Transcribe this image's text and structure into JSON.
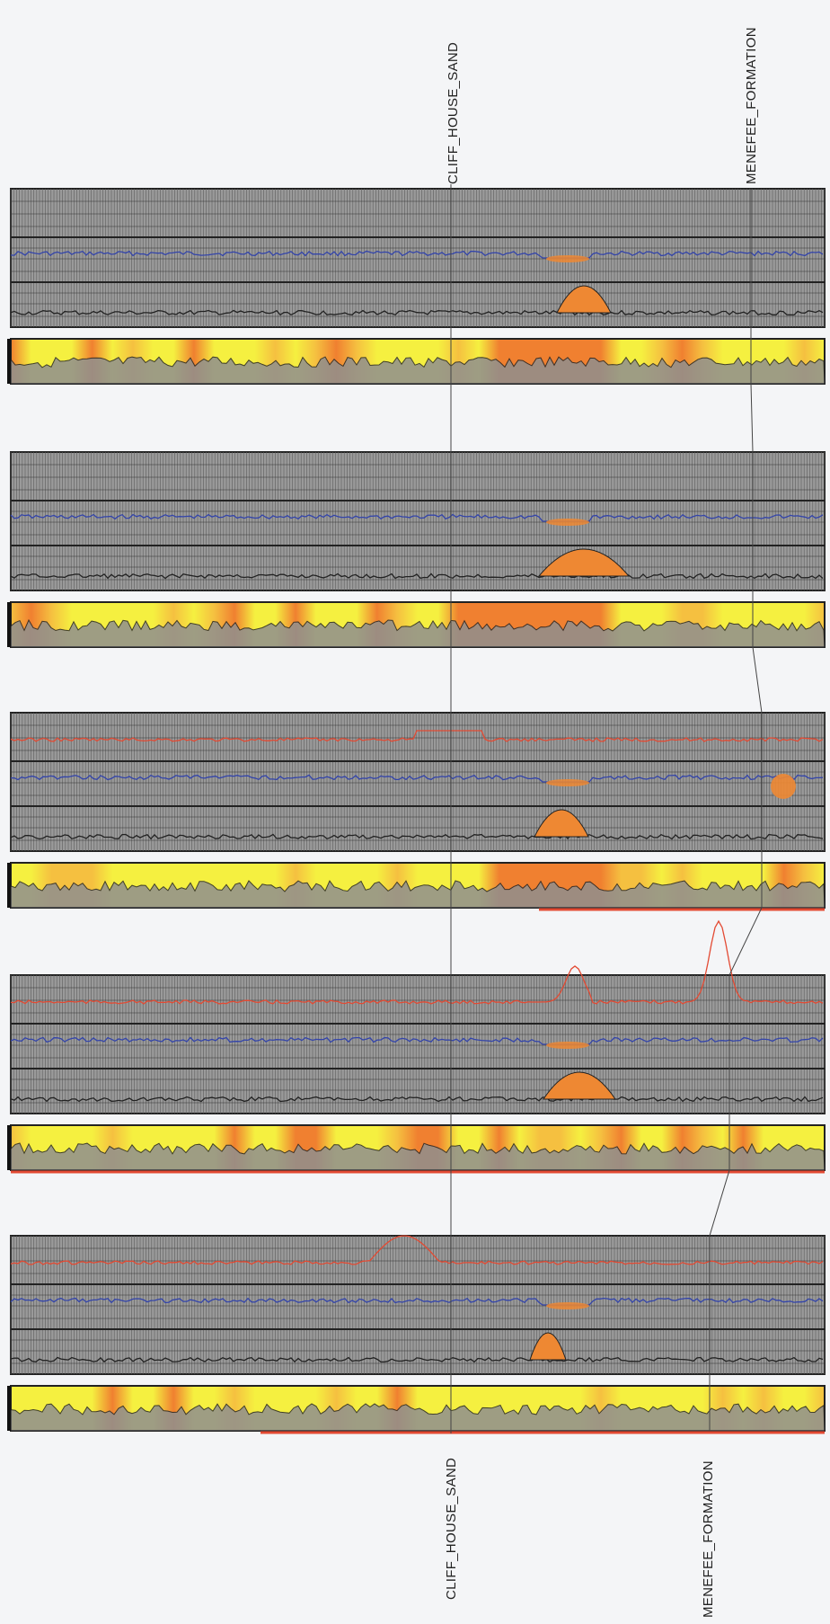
{
  "correlation": {
    "title": "",
    "tops": [
      {
        "name": "CLIFF_HOUSE_SAND"
      },
      {
        "name": "MENEFEE_FORMATION"
      }
    ],
    "top_labels": {
      "top": [
        "CLIFF_HOUSE_SAND",
        "MENEFEE_FORMATION"
      ],
      "bottom": [
        "CLIFF_HOUSE_SAND",
        "MENEFEE_FORMATION"
      ]
    },
    "wells": [
      {
        "id": "well-1",
        "has_resistivity": false,
        "has_red_baseline": false
      },
      {
        "id": "well-2",
        "has_resistivity": false,
        "has_red_baseline": false
      },
      {
        "id": "well-3",
        "has_resistivity": true,
        "has_red_baseline": true
      },
      {
        "id": "well-4",
        "has_resistivity": true,
        "has_red_baseline": true
      },
      {
        "id": "well-5",
        "has_resistivity": true,
        "has_red_baseline": true
      }
    ],
    "colors": {
      "panel_bg": "#9a9a9a",
      "grid": "#666666",
      "border": "#222222",
      "resistivity": "#e34a33",
      "density": "#3344aa",
      "gamma": "#222222",
      "fill": "#ee8833",
      "yellow": "#f5f040",
      "orange": "#f08030"
    }
  }
}
